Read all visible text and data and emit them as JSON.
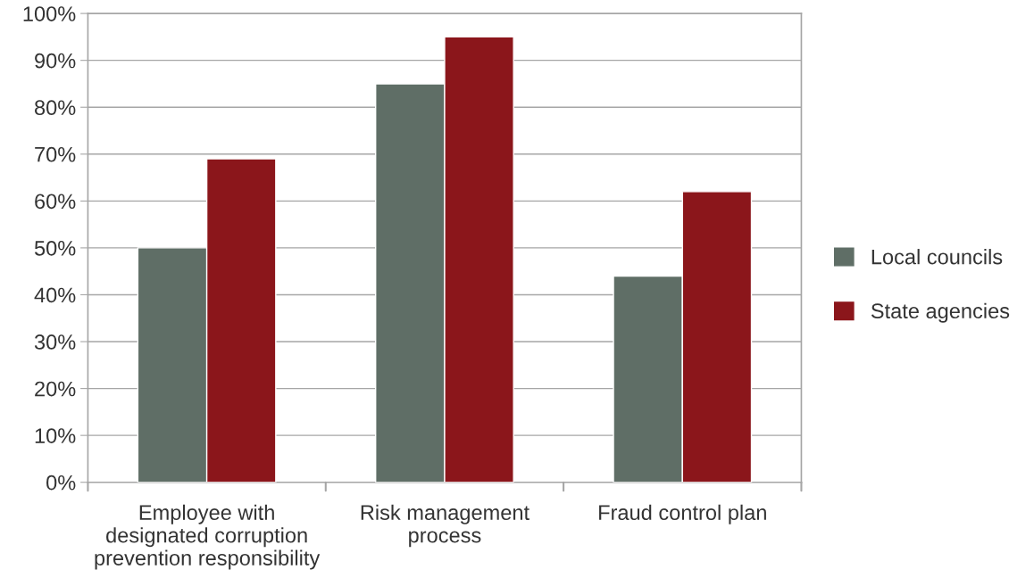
{
  "chart_data": {
    "type": "bar",
    "categories": [
      "Employee with\ndesignated corruption\nprevention responsibility",
      "Risk management\nprocess",
      "Fraud control plan"
    ],
    "series": [
      {
        "name": "Local councils",
        "color": "#5f6e66",
        "values": [
          50,
          85,
          44
        ]
      },
      {
        "name": "State agencies",
        "color": "#8b161b",
        "values": [
          69,
          95,
          62
        ]
      }
    ],
    "ylim": [
      0,
      100
    ],
    "yticks": [
      {
        "value": 0,
        "label": "0%"
      },
      {
        "value": 10,
        "label": "10%"
      },
      {
        "value": 20,
        "label": "20%"
      },
      {
        "value": 30,
        "label": "30%"
      },
      {
        "value": 40,
        "label": "40%"
      },
      {
        "value": 50,
        "label": "50%"
      },
      {
        "value": 60,
        "label": "60%"
      },
      {
        "value": 70,
        "label": "70%"
      },
      {
        "value": 80,
        "label": "80%"
      },
      {
        "value": 90,
        "label": "90%"
      },
      {
        "value": 100,
        "label": "100%"
      }
    ],
    "grid": "y",
    "legend": "right"
  }
}
